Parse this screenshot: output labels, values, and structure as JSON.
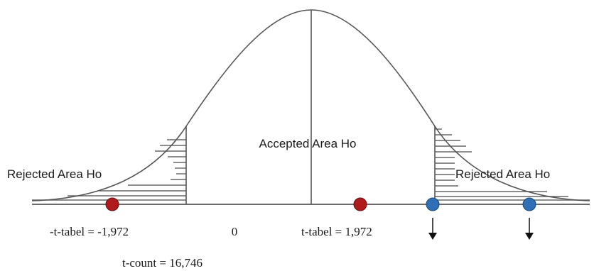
{
  "labels": {
    "rejected_left": "Rejected Area Ho",
    "accepted": "Accepted Area Ho",
    "rejected_right": "Rejected Area Ho",
    "t_table_neg": "-t-tabel = -1,972",
    "zero": "0",
    "t_table_pos": "t-tabel = 1,972",
    "t_count": "t-count = 16,746"
  },
  "markers": {
    "red": "#b01a1a",
    "blue": "#2e6fb5"
  },
  "colors": {
    "line": "#555555",
    "hatch": "#666666",
    "text": "#1a1a1a"
  }
}
